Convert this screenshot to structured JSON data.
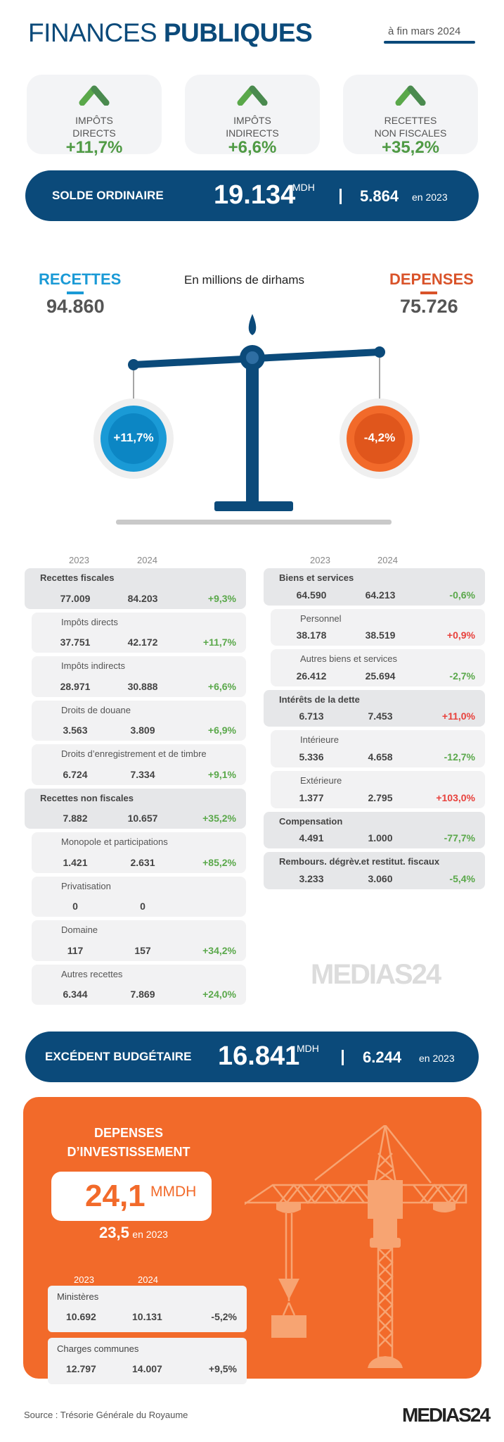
{
  "header": {
    "title_light": "FINANCES",
    "title_bold": "PUBLIQUES",
    "date": "à fin mars 2024"
  },
  "cards": [
    {
      "label1": "IMPÔTS",
      "label2": "DIRECTS",
      "pct": "+11,7%"
    },
    {
      "label1": "IMPÔTS",
      "label2": "INDIRECTS",
      "pct": "+6,6%"
    },
    {
      "label1": "RECETTES",
      "label2": "NON FISCALES",
      "pct": "+35,2%"
    }
  ],
  "solde": {
    "label": "SOLDE ORDINAIRE",
    "value": "19.134",
    "unit": "MDH",
    "prev": "5.864",
    "prev_label": "en 2023"
  },
  "balance": {
    "recettes_label": "RECETTES",
    "recettes_value": "94.860",
    "depenses_label": "DEPENSES",
    "depenses_value": "75.726",
    "unit_note": "En millions de dirhams",
    "recettes_pct": "+11,7%",
    "depenses_pct": "-4,2%"
  },
  "colors": {
    "navy": "#0b4a7a",
    "green": "#5aa84a",
    "red": "#e8413c",
    "orange": "#f26a2a",
    "blue": "#1a9ad6"
  },
  "years": {
    "y1": "2023",
    "y2": "2024"
  },
  "recettes_table": [
    {
      "name": "Recettes fiscales",
      "v2023": "77.009",
      "v2024": "84.203",
      "pct": "+9,3%",
      "level": "main",
      "color": "green"
    },
    {
      "name": "Impôts directs",
      "v2023": "37.751",
      "v2024": "42.172",
      "pct": "+11,7%",
      "level": "sub",
      "color": "green"
    },
    {
      "name": "Impôts indirects",
      "v2023": "28.971",
      "v2024": "30.888",
      "pct": "+6,6%",
      "level": "sub",
      "color": "green"
    },
    {
      "name": "Droits de douane",
      "v2023": "3.563",
      "v2024": "3.809",
      "pct": "+6,9%",
      "level": "sub",
      "color": "green"
    },
    {
      "name": "Droits d’enregistrement et de timbre",
      "v2023": "6.724",
      "v2024": "7.334",
      "pct": "+9,1%",
      "level": "sub",
      "color": "green"
    },
    {
      "name": "Recettes non fiscales",
      "v2023": "7.882",
      "v2024": "10.657",
      "pct": "+35,2%",
      "level": "main",
      "color": "green"
    },
    {
      "name": "Monopole et participations",
      "v2023": "1.421",
      "v2024": "2.631",
      "pct": "+85,2%",
      "level": "sub",
      "color": "green"
    },
    {
      "name": "Privatisation",
      "v2023": "0",
      "v2024": "0",
      "pct": "",
      "level": "sub",
      "color": "green"
    },
    {
      "name": "Domaine",
      "v2023": "117",
      "v2024": "157",
      "pct": "+34,2%",
      "level": "sub",
      "color": "green"
    },
    {
      "name": "Autres recettes",
      "v2023": "6.344",
      "v2024": "7.869",
      "pct": "+24,0%",
      "level": "sub",
      "color": "green"
    }
  ],
  "depenses_table": [
    {
      "name": "Biens et services",
      "v2023": "64.590",
      "v2024": "64.213",
      "pct": "-0,6%",
      "level": "main",
      "color": "green"
    },
    {
      "name": "Personnel",
      "v2023": "38.178",
      "v2024": "38.519",
      "pct": "+0,9%",
      "level": "sub",
      "color": "red"
    },
    {
      "name": "Autres biens et services",
      "v2023": "26.412",
      "v2024": "25.694",
      "pct": "-2,7%",
      "level": "sub",
      "color": "green"
    },
    {
      "name": "Intérêts de la dette",
      "v2023": "6.713",
      "v2024": "7.453",
      "pct": "+11,0%",
      "level": "main",
      "color": "red"
    },
    {
      "name": "Intérieure",
      "v2023": "5.336",
      "v2024": "4.658",
      "pct": "-12,7%",
      "level": "sub",
      "color": "green"
    },
    {
      "name": "Extérieure",
      "v2023": "1.377",
      "v2024": "2.795",
      "pct": "+103,0%",
      "level": "sub",
      "color": "red"
    },
    {
      "name": "Compensation",
      "v2023": "4.491",
      "v2024": "1.000",
      "pct": "-77,7%",
      "level": "main",
      "color": "green"
    },
    {
      "name": "Rembours. dégrèv.et restitut. fiscaux",
      "v2023": "3.233",
      "v2024": "3.060",
      "pct": "-5,4%",
      "level": "main",
      "color": "green"
    }
  ],
  "watermark": "MEDIAS24",
  "excedent": {
    "label": "EXCÉDENT BUDGÉTAIRE",
    "value": "16.841",
    "unit": "MDH",
    "prev": "6.244",
    "prev_label": "en 2023"
  },
  "investissement": {
    "title1": "DEPENSES",
    "title2": "D’INVESTISSEMENT",
    "value": "24,1",
    "unit": "MMDH",
    "prev": "23,5",
    "prev_label": "en 2023",
    "rows": [
      {
        "name": "Ministères",
        "v2023": "10.692",
        "v2024": "10.131",
        "pct": "-5,2%"
      },
      {
        "name": "Charges communes",
        "v2023": "12.797",
        "v2024": "14.007",
        "pct": "+9,5%"
      }
    ]
  },
  "footer": {
    "source": "Source : Trésorie Générale du Royaume",
    "logo": "MEDIAS24"
  }
}
